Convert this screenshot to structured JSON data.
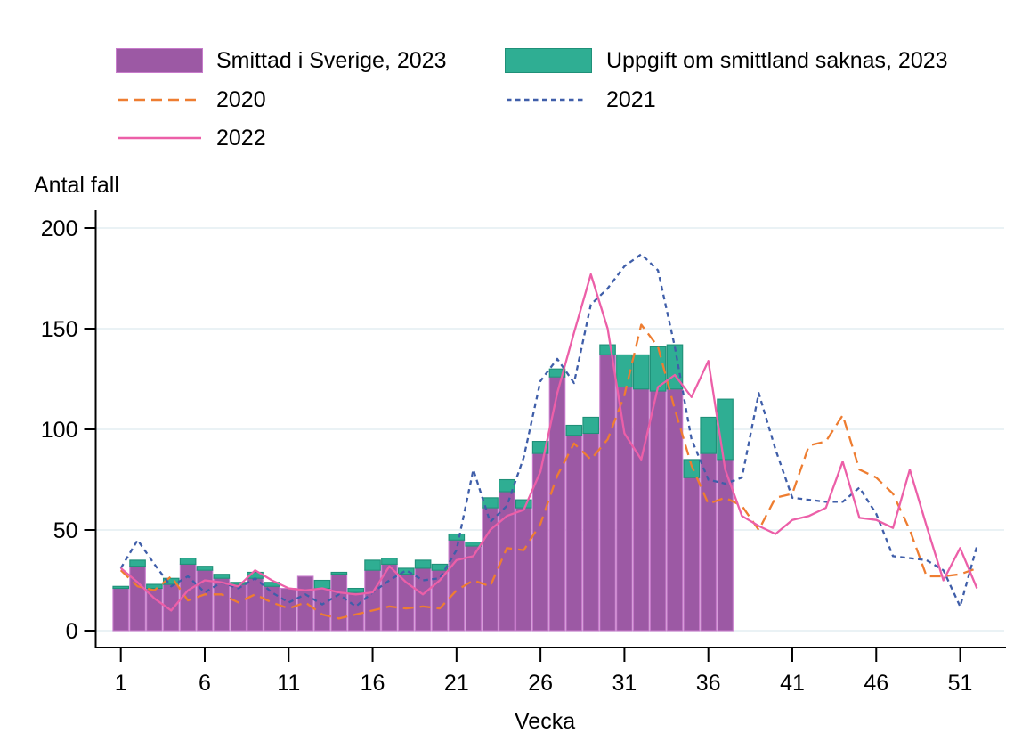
{
  "legend": {
    "bar_sweden": "Smittad i Sverige, 2023",
    "bar_unknown": "Uppgift om smittland saknas, 2023",
    "line_2020": "2020",
    "line_2021": "2021",
    "line_2022": "2022"
  },
  "chart_data": {
    "type": "bar",
    "subtype": "stacked bars (2023 weekly cases) with three comparison line series",
    "title": "",
    "xlabel": "Vecka",
    "ylabel": "Antal fall",
    "grid": true,
    "legend_position": "top",
    "x_axis": {
      "ticks": [
        1,
        6,
        11,
        16,
        21,
        26,
        31,
        36,
        41,
        46,
        51
      ],
      "range": [
        1,
        53
      ]
    },
    "y_axis": {
      "ticks": [
        0,
        50,
        100,
        150,
        200
      ],
      "range": [
        0,
        209
      ]
    },
    "bars": {
      "stacked": true,
      "weeks": [
        1,
        2,
        3,
        4,
        5,
        6,
        7,
        8,
        9,
        10,
        11,
        12,
        13,
        14,
        15,
        16,
        17,
        18,
        19,
        20,
        21,
        22,
        23,
        24,
        25,
        26,
        27,
        28,
        29,
        30,
        31,
        32,
        33,
        34,
        35,
        36,
        37
      ],
      "series": [
        {
          "name": "Smittad i Sverige, 2023",
          "color": "#9c59a4",
          "border": "#c77bcb",
          "values": [
            21,
            32,
            21,
            23,
            33,
            30,
            26,
            23,
            26,
            22,
            21,
            27,
            21,
            28,
            19,
            30,
            33,
            28,
            31,
            30,
            45,
            42,
            61,
            69,
            61,
            88,
            126,
            97,
            98,
            137,
            121,
            120,
            119,
            120,
            76,
            88,
            85
          ]
        },
        {
          "name": "Uppgift om smittland saknas, 2023",
          "color": "#2fae93",
          "border": "#1f9078",
          "values": [
            1,
            3,
            2,
            3,
            3,
            2,
            2,
            1,
            3,
            2,
            0,
            0,
            4,
            1,
            2,
            5,
            3,
            3,
            4,
            3,
            3,
            2,
            5,
            6,
            4,
            6,
            4,
            5,
            8,
            5,
            16,
            17,
            22,
            22,
            9,
            18,
            30
          ]
        }
      ]
    },
    "lines": [
      {
        "name": "2020",
        "color": "#ee7d31",
        "style": "dashed-long",
        "weeks": [
          1,
          2,
          3,
          4,
          5,
          6,
          7,
          8,
          9,
          10,
          11,
          12,
          13,
          14,
          15,
          16,
          17,
          18,
          19,
          20,
          21,
          22,
          23,
          24,
          25,
          26,
          27,
          28,
          29,
          30,
          31,
          32,
          33,
          34,
          35,
          36,
          37,
          38,
          39,
          40,
          41,
          42,
          43,
          44,
          45,
          46,
          47,
          48,
          49,
          50,
          51,
          52
        ],
        "values": [
          30,
          22,
          20,
          27,
          15,
          18,
          18,
          14,
          18,
          14,
          11,
          14,
          8,
          6,
          8,
          10,
          12,
          11,
          12,
          11,
          20,
          25,
          22,
          41,
          40,
          53,
          77,
          93,
          85,
          95,
          117,
          152,
          141,
          110,
          82,
          63,
          66,
          62,
          50,
          66,
          68,
          92,
          94,
          107,
          80,
          76,
          68,
          50,
          27,
          27,
          28,
          31
        ]
      },
      {
        "name": "2021",
        "color": "#3f5ea9",
        "style": "dashed-short",
        "weeks": [
          1,
          2,
          3,
          4,
          5,
          6,
          7,
          8,
          9,
          10,
          11,
          12,
          13,
          14,
          15,
          16,
          17,
          18,
          19,
          20,
          21,
          22,
          23,
          24,
          25,
          26,
          27,
          28,
          29,
          30,
          31,
          32,
          33,
          34,
          35,
          36,
          37,
          38,
          39,
          40,
          41,
          42,
          43,
          44,
          45,
          46,
          47,
          48,
          49,
          50,
          51,
          52
        ],
        "values": [
          31,
          45,
          33,
          22,
          27,
          19,
          24,
          21,
          26,
          19,
          14,
          18,
          13,
          18,
          12,
          19,
          25,
          30,
          25,
          26,
          40,
          80,
          54,
          62,
          86,
          124,
          135,
          123,
          162,
          170,
          181,
          187,
          179,
          141,
          95,
          75,
          73,
          76,
          118,
          90,
          66,
          65,
          64,
          64,
          71,
          58,
          37,
          36,
          35,
          30,
          12,
          42
        ]
      },
      {
        "name": "2022",
        "color": "#ec5fa8",
        "style": "solid",
        "weeks": [
          1,
          2,
          3,
          4,
          5,
          6,
          7,
          8,
          9,
          10,
          11,
          12,
          13,
          14,
          15,
          16,
          17,
          18,
          19,
          20,
          21,
          22,
          23,
          24,
          25,
          26,
          27,
          28,
          29,
          30,
          31,
          32,
          33,
          34,
          35,
          36,
          37,
          38,
          39,
          40,
          41,
          42,
          43,
          44,
          45,
          46,
          47,
          48,
          49,
          50,
          51,
          52
        ],
        "values": [
          31,
          24,
          16,
          10,
          20,
          25,
          24,
          22,
          30,
          25,
          21,
          20,
          21,
          19,
          18,
          19,
          32,
          24,
          18,
          25,
          35,
          37,
          50,
          57,
          60,
          79,
          118,
          148,
          177,
          150,
          98,
          85,
          121,
          127,
          116,
          134,
          80,
          57,
          52,
          48,
          55,
          57,
          61,
          84,
          56,
          55,
          51,
          80,
          52,
          25,
          41,
          21
        ]
      }
    ]
  }
}
